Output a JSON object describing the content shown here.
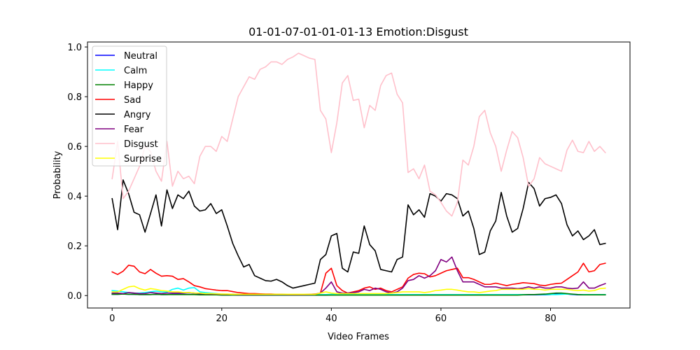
{
  "chart_data": {
    "type": "line",
    "title": "01-01-07-01-01-01-13 Emotion:Disgust",
    "xlabel": "Video Frames",
    "ylabel": "Probability",
    "xlim": [
      -4.5,
      94.5
    ],
    "ylim": [
      -0.05,
      1.02
    ],
    "xticks": [
      0,
      20,
      40,
      60,
      80
    ],
    "yticks": [
      0.0,
      0.2,
      0.4,
      0.6,
      0.8,
      1.0
    ],
    "ytick_labels": [
      "0.0",
      "0.2",
      "0.4",
      "0.6",
      "0.8",
      "1.0"
    ],
    "legend_position": "top-left",
    "series": [
      {
        "name": "Neutral",
        "color": "#0000ff",
        "values": [
          0.005,
          0.005,
          0.006,
          0.005,
          0.005,
          0.004,
          0.004,
          0.004,
          0.005,
          0.004,
          0.004,
          0.005,
          0.005,
          0.005,
          0.005,
          0.005,
          0.004,
          0.004,
          0.004,
          0.003,
          0.003,
          0.003,
          0.003,
          0.002,
          0.002,
          0.002,
          0.002,
          0.002,
          0.002,
          0.002,
          0.002,
          0.002,
          0.002,
          0.002,
          0.002,
          0.002,
          0.002,
          0.002,
          0.002,
          0.002,
          0.003,
          0.004,
          0.003,
          0.003,
          0.003,
          0.003,
          0.003,
          0.003,
          0.003,
          0.003,
          0.003,
          0.003,
          0.003,
          0.003,
          0.003,
          0.003,
          0.003,
          0.003,
          0.003,
          0.003,
          0.003,
          0.003,
          0.003,
          0.003,
          0.003,
          0.003,
          0.003,
          0.003,
          0.003,
          0.003,
          0.003,
          0.003,
          0.003,
          0.003,
          0.003,
          0.003,
          0.003,
          0.003,
          0.003,
          0.003,
          0.004,
          0.006,
          0.008,
          0.006,
          0.004,
          0.003,
          0.003,
          0.003,
          0.003,
          0.003,
          0.003
        ]
      },
      {
        "name": "Calm",
        "color": "#00ffff",
        "values": [
          0.02,
          0.018,
          0.015,
          0.012,
          0.01,
          0.01,
          0.012,
          0.015,
          0.018,
          0.015,
          0.014,
          0.025,
          0.03,
          0.022,
          0.03,
          0.032,
          0.015,
          0.012,
          0.01,
          0.008,
          0.006,
          0.005,
          0.005,
          0.004,
          0.004,
          0.004,
          0.004,
          0.004,
          0.004,
          0.004,
          0.004,
          0.004,
          0.004,
          0.004,
          0.004,
          0.004,
          0.004,
          0.004,
          0.004,
          0.004,
          0.005,
          0.006,
          0.005,
          0.004,
          0.004,
          0.004,
          0.004,
          0.004,
          0.004,
          0.004,
          0.004,
          0.004,
          0.004,
          0.004,
          0.004,
          0.004,
          0.004,
          0.004,
          0.004,
          0.004,
          0.004,
          0.004,
          0.004,
          0.004,
          0.004,
          0.004,
          0.004,
          0.004,
          0.004,
          0.004,
          0.004,
          0.004,
          0.004,
          0.004,
          0.004,
          0.004,
          0.004,
          0.004,
          0.004,
          0.004,
          0.004,
          0.004,
          0.005,
          0.006,
          0.005,
          0.004,
          0.004,
          0.004,
          0.004,
          0.004,
          0.004
        ]
      },
      {
        "name": "Happy",
        "color": "#008000",
        "values": [
          0.005,
          0.005,
          0.006,
          0.005,
          0.005,
          0.004,
          0.004,
          0.004,
          0.005,
          0.004,
          0.004,
          0.004,
          0.004,
          0.004,
          0.004,
          0.004,
          0.003,
          0.003,
          0.003,
          0.003,
          0.002,
          0.002,
          0.002,
          0.002,
          0.002,
          0.002,
          0.002,
          0.002,
          0.002,
          0.002,
          0.002,
          0.002,
          0.002,
          0.002,
          0.002,
          0.002,
          0.002,
          0.002,
          0.002,
          0.002,
          0.002,
          0.002,
          0.002,
          0.002,
          0.002,
          0.002,
          0.002,
          0.002,
          0.002,
          0.002,
          0.002,
          0.002,
          0.002,
          0.002,
          0.002,
          0.002,
          0.002,
          0.002,
          0.002,
          0.002,
          0.002,
          0.002,
          0.002,
          0.002,
          0.002,
          0.002,
          0.002,
          0.002,
          0.002,
          0.002,
          0.002,
          0.002,
          0.002,
          0.002,
          0.002,
          0.003,
          0.004,
          0.004,
          0.005,
          0.006,
          0.008,
          0.01,
          0.01,
          0.008,
          0.006,
          0.004,
          0.003,
          0.003,
          0.003,
          0.003,
          0.003
        ]
      },
      {
        "name": "Sad",
        "color": "#ff0000",
        "values": [
          0.095,
          0.085,
          0.098,
          0.122,
          0.118,
          0.095,
          0.088,
          0.105,
          0.09,
          0.078,
          0.08,
          0.078,
          0.065,
          0.068,
          0.055,
          0.04,
          0.035,
          0.028,
          0.025,
          0.022,
          0.02,
          0.02,
          0.016,
          0.012,
          0.01,
          0.008,
          0.008,
          0.007,
          0.006,
          0.006,
          0.005,
          0.005,
          0.004,
          0.004,
          0.004,
          0.004,
          0.005,
          0.006,
          0.01,
          0.09,
          0.11,
          0.04,
          0.02,
          0.01,
          0.015,
          0.02,
          0.03,
          0.035,
          0.025,
          0.03,
          0.02,
          0.015,
          0.025,
          0.035,
          0.07,
          0.085,
          0.09,
          0.088,
          0.075,
          0.08,
          0.09,
          0.1,
          0.105,
          0.11,
          0.072,
          0.072,
          0.065,
          0.055,
          0.045,
          0.045,
          0.05,
          0.045,
          0.04,
          0.045,
          0.048,
          0.052,
          0.05,
          0.048,
          0.042,
          0.04,
          0.045,
          0.048,
          0.05,
          0.065,
          0.08,
          0.095,
          0.13,
          0.095,
          0.1,
          0.125,
          0.13
        ]
      },
      {
        "name": "Angry",
        "color": "#000000",
        "values": [
          0.39,
          0.265,
          0.465,
          0.41,
          0.335,
          0.325,
          0.255,
          0.33,
          0.405,
          0.28,
          0.425,
          0.35,
          0.405,
          0.39,
          0.42,
          0.36,
          0.34,
          0.345,
          0.37,
          0.33,
          0.345,
          0.28,
          0.21,
          0.16,
          0.115,
          0.125,
          0.08,
          0.07,
          0.06,
          0.058,
          0.065,
          0.055,
          0.04,
          0.03,
          0.035,
          0.04,
          0.045,
          0.05,
          0.145,
          0.165,
          0.24,
          0.25,
          0.11,
          0.095,
          0.175,
          0.17,
          0.28,
          0.205,
          0.18,
          0.105,
          0.1,
          0.095,
          0.145,
          0.155,
          0.365,
          0.325,
          0.345,
          0.315,
          0.41,
          0.4,
          0.38,
          0.41,
          0.405,
          0.39,
          0.32,
          0.34,
          0.27,
          0.165,
          0.175,
          0.26,
          0.3,
          0.415,
          0.32,
          0.255,
          0.27,
          0.35,
          0.455,
          0.43,
          0.36,
          0.39,
          0.395,
          0.405,
          0.37,
          0.285,
          0.24,
          0.26,
          0.225,
          0.24,
          0.265,
          0.205,
          0.21
        ]
      },
      {
        "name": "Fear",
        "color": "#800080",
        "values": [
          0.01,
          0.01,
          0.008,
          0.012,
          0.01,
          0.008,
          0.008,
          0.012,
          0.01,
          0.008,
          0.01,
          0.01,
          0.01,
          0.01,
          0.012,
          0.01,
          0.008,
          0.007,
          0.006,
          0.006,
          0.005,
          0.005,
          0.005,
          0.004,
          0.004,
          0.004,
          0.004,
          0.004,
          0.004,
          0.004,
          0.004,
          0.004,
          0.004,
          0.004,
          0.004,
          0.004,
          0.004,
          0.005,
          0.01,
          0.03,
          0.055,
          0.015,
          0.01,
          0.01,
          0.012,
          0.015,
          0.025,
          0.02,
          0.03,
          0.025,
          0.015,
          0.01,
          0.015,
          0.03,
          0.06,
          0.065,
          0.08,
          0.07,
          0.08,
          0.1,
          0.145,
          0.135,
          0.155,
          0.1,
          0.055,
          0.055,
          0.055,
          0.045,
          0.035,
          0.035,
          0.035,
          0.03,
          0.03,
          0.03,
          0.028,
          0.03,
          0.035,
          0.03,
          0.035,
          0.03,
          0.03,
          0.035,
          0.035,
          0.03,
          0.028,
          0.03,
          0.055,
          0.03,
          0.03,
          0.04,
          0.048
        ]
      },
      {
        "name": "Disgust",
        "color": "#ffc0cb",
        "values": [
          0.47,
          0.62,
          0.39,
          0.42,
          0.47,
          0.52,
          0.6,
          0.58,
          0.5,
          0.46,
          0.62,
          0.44,
          0.5,
          0.47,
          0.48,
          0.45,
          0.56,
          0.6,
          0.6,
          0.58,
          0.64,
          0.62,
          0.71,
          0.8,
          0.84,
          0.88,
          0.87,
          0.91,
          0.92,
          0.94,
          0.94,
          0.93,
          0.95,
          0.96,
          0.975,
          0.965,
          0.955,
          0.95,
          0.745,
          0.71,
          0.575,
          0.695,
          0.855,
          0.885,
          0.785,
          0.79,
          0.675,
          0.765,
          0.745,
          0.845,
          0.885,
          0.895,
          0.81,
          0.775,
          0.495,
          0.51,
          0.47,
          0.525,
          0.42,
          0.405,
          0.375,
          0.34,
          0.32,
          0.375,
          0.545,
          0.525,
          0.6,
          0.72,
          0.745,
          0.655,
          0.6,
          0.5,
          0.585,
          0.66,
          0.635,
          0.555,
          0.44,
          0.47,
          0.555,
          0.53,
          0.52,
          0.51,
          0.5,
          0.585,
          0.625,
          0.58,
          0.575,
          0.62,
          0.58,
          0.6,
          0.575
        ]
      },
      {
        "name": "Surprise",
        "color": "#ffff00",
        "values": [
          0.015,
          0.015,
          0.025,
          0.035,
          0.038,
          0.028,
          0.022,
          0.028,
          0.025,
          0.02,
          0.018,
          0.015,
          0.015,
          0.012,
          0.012,
          0.01,
          0.01,
          0.008,
          0.008,
          0.007,
          0.006,
          0.006,
          0.005,
          0.005,
          0.005,
          0.005,
          0.005,
          0.005,
          0.005,
          0.005,
          0.005,
          0.005,
          0.005,
          0.005,
          0.005,
          0.005,
          0.005,
          0.005,
          0.01,
          0.015,
          0.01,
          0.008,
          0.008,
          0.008,
          0.008,
          0.008,
          0.008,
          0.008,
          0.008,
          0.008,
          0.008,
          0.01,
          0.012,
          0.015,
          0.015,
          0.015,
          0.015,
          0.012,
          0.015,
          0.02,
          0.022,
          0.025,
          0.025,
          0.022,
          0.018,
          0.015,
          0.015,
          0.012,
          0.015,
          0.018,
          0.02,
          0.025,
          0.025,
          0.025,
          0.025,
          0.025,
          0.028,
          0.025,
          0.025,
          0.022,
          0.025,
          0.025,
          0.025,
          0.025,
          0.022,
          0.02,
          0.022,
          0.018,
          0.02,
          0.028,
          0.03
        ]
      }
    ]
  }
}
